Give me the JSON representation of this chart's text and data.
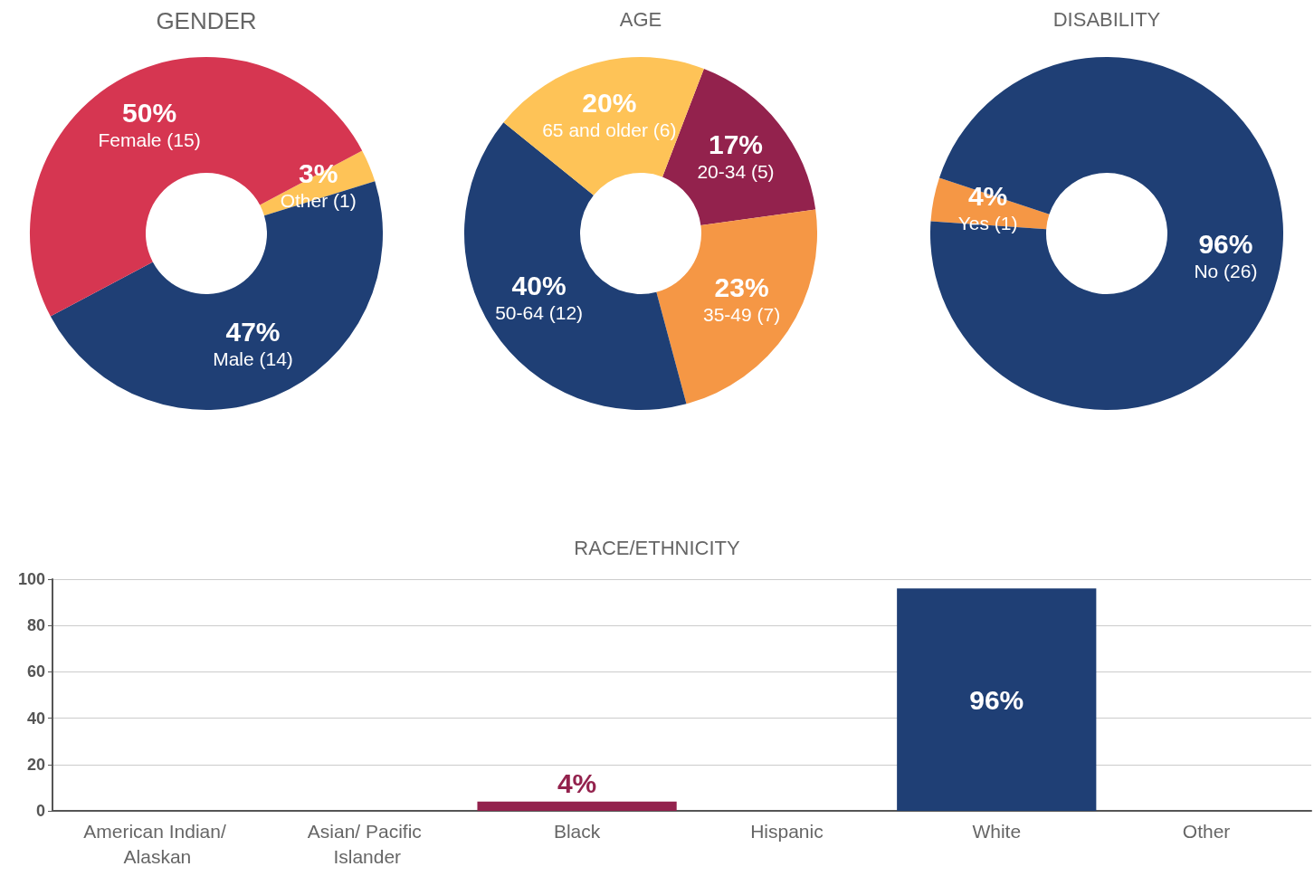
{
  "chart_data": [
    {
      "type": "donut",
      "title": "GENDER",
      "categories": [
        "Other (1)",
        "Male (14)",
        "Female (15)"
      ],
      "values": [
        3,
        47,
        50
      ],
      "colors": [
        "#fec357",
        "#1f3f75",
        "#d63651"
      ],
      "value_labels": [
        "3%",
        "47%",
        "50%"
      ]
    },
    {
      "type": "donut",
      "title": "AGE",
      "categories": [
        "20-34 (5)",
        "35-49 (7)",
        "50-64 (12)",
        "65 and older (6)"
      ],
      "values": [
        17,
        23,
        40,
        20
      ],
      "colors": [
        "#93224d",
        "#f59745",
        "#1f3f75",
        "#fec357"
      ],
      "value_labels": [
        "17%",
        "23%",
        "40%",
        "20%"
      ]
    },
    {
      "type": "donut",
      "title": "DISABILITY",
      "categories": [
        "Yes (1)",
        "No (26)"
      ],
      "values": [
        4,
        96
      ],
      "colors": [
        "#f59745",
        "#1f3f75"
      ],
      "value_labels": [
        "4%",
        "96%"
      ]
    },
    {
      "type": "bar",
      "title": "RACE/ETHNICITY",
      "categories": [
        "American Indian/ Alaskan",
        "Asian/ Pacific Islander",
        "Black",
        "Hispanic",
        "White",
        "Other"
      ],
      "values": [
        0,
        0,
        4,
        0,
        96,
        0
      ],
      "colors": [
        "#93224d",
        "#93224d",
        "#93224d",
        "#1f3f75",
        "#1f3f75",
        "#1f3f75"
      ],
      "value_labels": [
        null,
        null,
        "4%",
        null,
        "96%",
        null
      ],
      "ylim": [
        0,
        100
      ],
      "yticks": [
        0,
        20,
        40,
        60,
        80,
        100
      ],
      "grid": "y"
    }
  ]
}
